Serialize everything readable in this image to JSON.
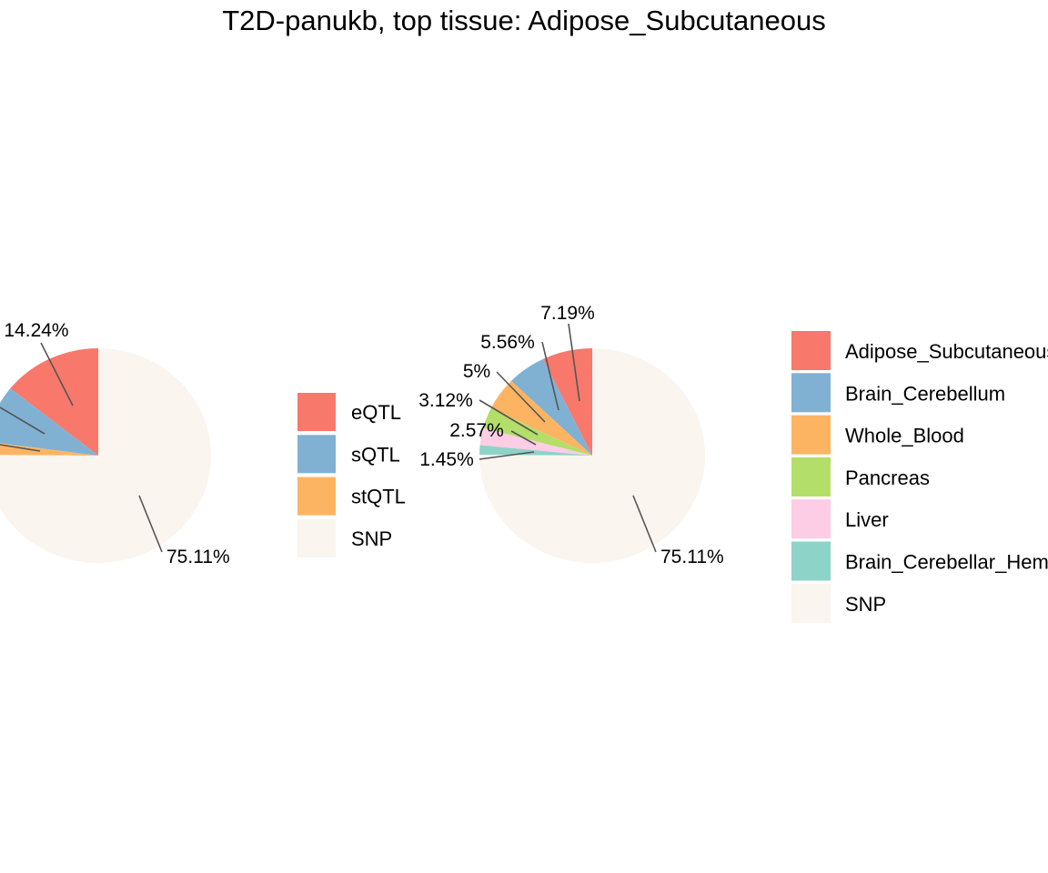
{
  "chart_data": [
    {
      "type": "pie",
      "title": "T2D-panukb, top tissue: Adipose_Subcutaneous",
      "slices": [
        {
          "name": "eQTL",
          "value": 14.24,
          "label": "14.24%",
          "color": "#F8786C"
        },
        {
          "name": "sQTL",
          "value": 8.68,
          "label": "",
          "color": "#80B1D3"
        },
        {
          "name": "stQTL",
          "value": 1.97,
          "label": "",
          "color": "#FDB462"
        },
        {
          "name": "SNP",
          "value": 75.11,
          "label": "75.11%",
          "color": "#FAF5EF"
        }
      ],
      "legend": {
        "position": "right",
        "entries": [
          "eQTL",
          "sQTL",
          "stQTL",
          "SNP"
        ]
      }
    },
    {
      "type": "pie",
      "slices": [
        {
          "name": "Adipose_Subcutaneous",
          "value": 7.19,
          "label": "7.19%",
          "color": "#F8786C"
        },
        {
          "name": "Brain_Cerebellum",
          "value": 5.56,
          "label": "5.56%",
          "color": "#80B1D3"
        },
        {
          "name": "Whole_Blood",
          "value": 5.0,
          "label": "5%",
          "color": "#FDB462"
        },
        {
          "name": "Pancreas",
          "value": 3.12,
          "label": "3.12%",
          "color": "#B3DE69"
        },
        {
          "name": "Liver",
          "value": 2.57,
          "label": "2.57%",
          "color": "#FCCDE5"
        },
        {
          "name": "Brain_Cerebellar_Hemisphere",
          "value": 1.45,
          "label": "1.45%",
          "color": "#8DD3C7"
        },
        {
          "name": "SNP",
          "value": 75.11,
          "label": "75.11%",
          "color": "#FAF5EF"
        }
      ],
      "legend": {
        "position": "right",
        "entries": [
          "Adipose_Subcutaneous",
          "Brain_Cerebellum",
          "Whole_Blood",
          "Pancreas",
          "Liver",
          "Brain_Cerebellar_Hemisphere",
          "SNP"
        ]
      }
    }
  ]
}
